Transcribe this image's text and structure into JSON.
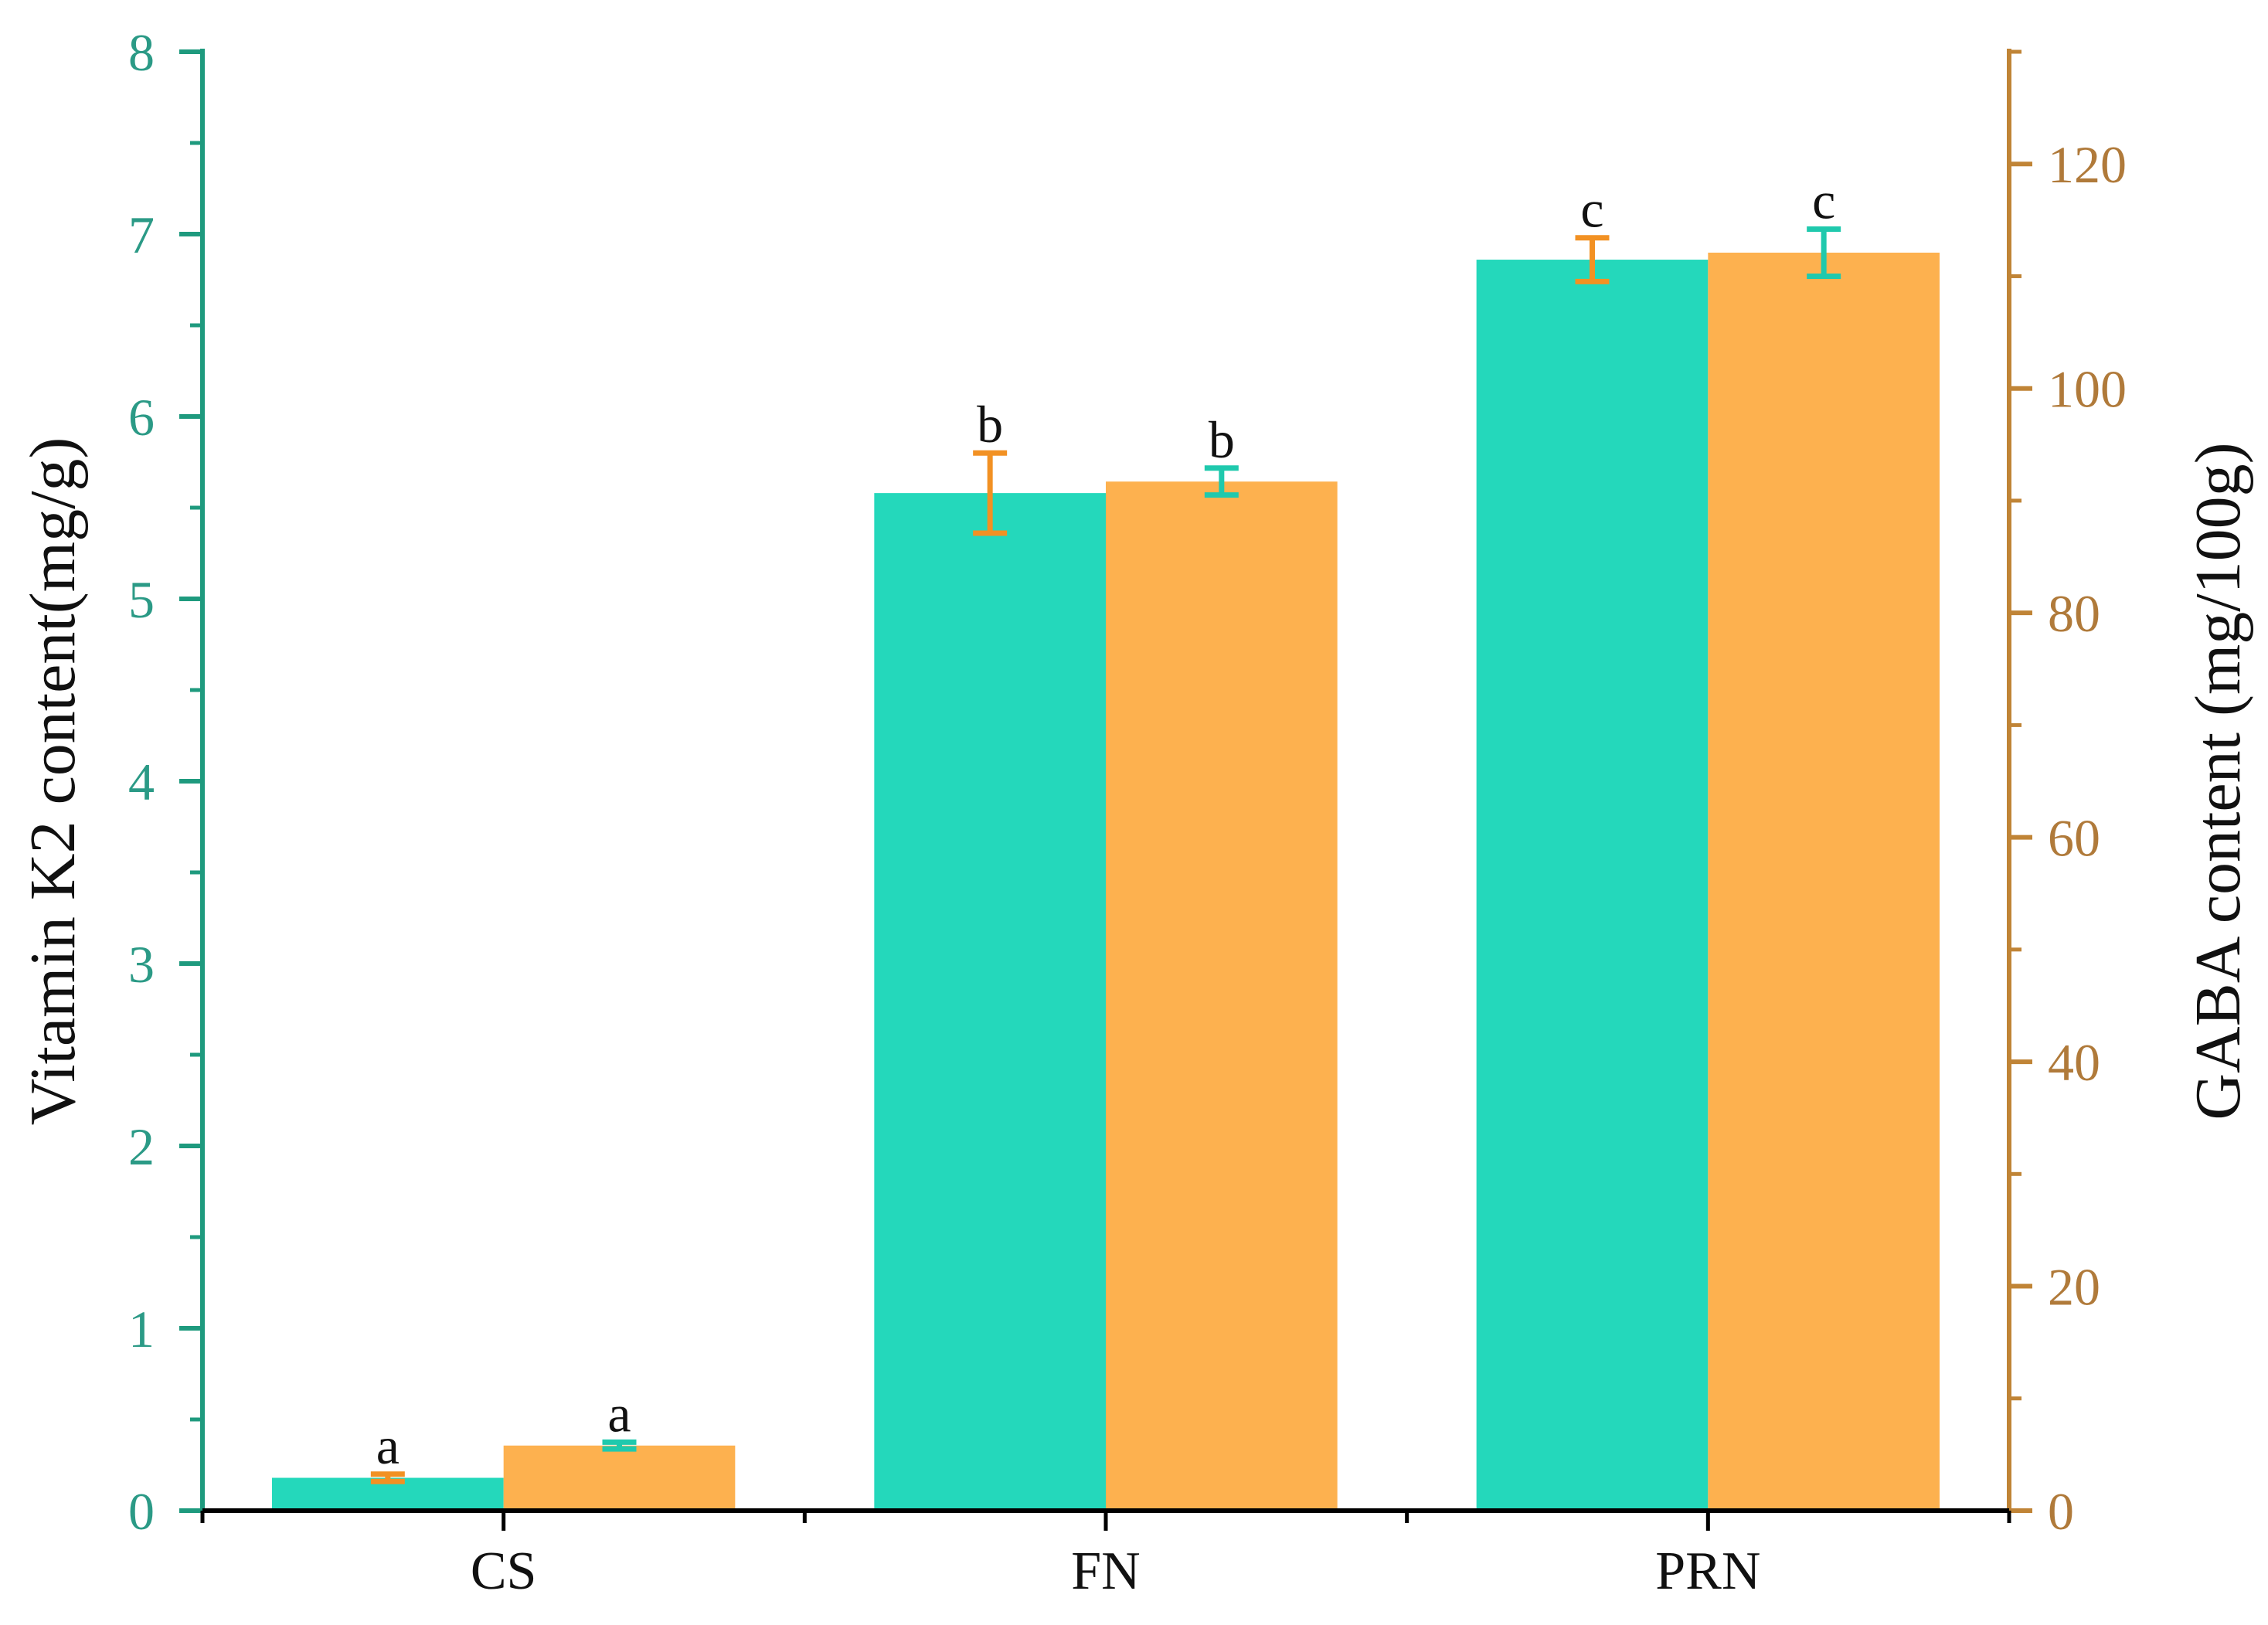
{
  "colors": {
    "left_axis": "#1e9a7e",
    "left_tick_text": "#2b9a86",
    "right_axis": "#c08436",
    "right_tick_text": "#b07a3a",
    "bar_k2": "#24d8bb",
    "bar_gaba": "#fdb14f",
    "err_orange": "#f29123",
    "err_teal": "#1fc9ad",
    "text": "#111111"
  },
  "chart_data": {
    "type": "bar",
    "categories": [
      "CS",
      "FN",
      "PRN"
    ],
    "left_axis": {
      "label": "Vitamin K2 content(mg/g)",
      "range": [
        0,
        8
      ],
      "ticks": [
        "0",
        "1",
        "2",
        "3",
        "4",
        "5",
        "6",
        "7",
        "8"
      ]
    },
    "right_axis": {
      "label": "GABA content (mg/100g)",
      "range": [
        0,
        130
      ],
      "ticks": [
        "0",
        "20",
        "40",
        "60",
        "80",
        "100",
        "120"
      ]
    },
    "series": [
      {
        "axis": "left",
        "color": "#24d8bb",
        "error_color": "#f29123",
        "values": [
          0.18,
          5.58,
          6.86
        ],
        "errors": [
          0.02,
          0.22,
          0.12
        ],
        "significance": [
          "a",
          "b",
          "c"
        ]
      },
      {
        "axis": "right",
        "color": "#fdb14f",
        "error_color": "#1fc9ad",
        "values": [
          5.8,
          91.7,
          112.1
        ],
        "errors": [
          0.3,
          1.2,
          2.1
        ],
        "significance": [
          "a",
          "b",
          "c"
        ]
      }
    ],
    "grid": false,
    "legend": "none"
  }
}
